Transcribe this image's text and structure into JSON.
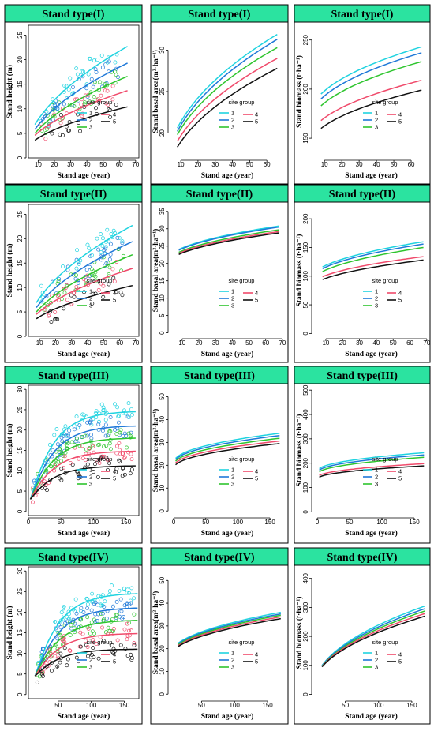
{
  "colors": {
    "1": "#1fd3e0",
    "2": "#1f78d8",
    "3": "#2ec52e",
    "4": "#f04a6b",
    "5": "#111111",
    "header": "#2be3a0"
  },
  "legend": {
    "title": "site group",
    "labels": [
      "1",
      "2",
      "3",
      "4",
      "5"
    ]
  },
  "panels": [
    {
      "title": "Stand type(I)",
      "chart_data": {
        "type": "line",
        "title": "Stand type(I)",
        "xlabel": "Stand age (year)",
        "ylabel": "Stand height (m)",
        "xlim": [
          4,
          72
        ],
        "ylim": [
          0,
          27
        ],
        "xticks": [
          10,
          20,
          30,
          40,
          50,
          60,
          70
        ],
        "yticks": [
          0,
          5,
          10,
          15,
          20,
          25
        ],
        "x_range": [
          8,
          65
        ],
        "scatter": true,
        "series": [
          {
            "name": "1",
            "values": [
              6.8,
              22.7
            ]
          },
          {
            "name": "2",
            "values": [
              5.8,
              19.3
            ]
          },
          {
            "name": "3",
            "values": [
              5.0,
              16.6
            ]
          },
          {
            "name": "4",
            "values": [
              4.6,
              13.7
            ]
          },
          {
            "name": "5",
            "values": [
              3.6,
              10.4
            ]
          }
        ]
      }
    },
    {
      "title": "Stand type(I)",
      "chart_data": {
        "type": "line",
        "title": "Stand type(I)",
        "xlabel": "Stand age (year)",
        "ylabel": "Stand basal area(m²·ha⁻¹)",
        "xlim": [
          4,
          70
        ],
        "ylim": [
          17,
          33
        ],
        "xticks": [
          10,
          20,
          30,
          40,
          50,
          60
        ],
        "yticks": [
          20,
          25,
          30
        ],
        "x_range": [
          8,
          66
        ],
        "scatter": false,
        "series": [
          {
            "name": "1",
            "values": [
              20.6,
              31.9
            ]
          },
          {
            "name": "2",
            "values": [
              20.2,
              31.3
            ]
          },
          {
            "name": "3",
            "values": [
              19.8,
              30.3
            ]
          },
          {
            "name": "4",
            "values": [
              19.0,
              29.0
            ]
          },
          {
            "name": "5",
            "values": [
              18.3,
              27.8
            ]
          }
        ]
      }
    },
    {
      "title": "Stand type(I)",
      "chart_data": {
        "type": "line",
        "title": "Stand type(I)",
        "xlabel": "Stand age (year)",
        "ylabel": "Stand biomass (t·ha⁻¹)",
        "xlim": [
          4,
          70
        ],
        "ylim": [
          130,
          265
        ],
        "xticks": [
          10,
          20,
          30,
          40,
          50,
          60
        ],
        "yticks": [
          150,
          200,
          250
        ],
        "x_range": [
          8,
          66
        ],
        "scatter": false,
        "series": [
          {
            "name": "1",
            "values": [
              195,
              243
            ]
          },
          {
            "name": "2",
            "values": [
              190,
              237
            ]
          },
          {
            "name": "3",
            "values": [
              183,
              228
            ]
          },
          {
            "name": "4",
            "values": [
              168,
              209
            ]
          },
          {
            "name": "5",
            "values": [
              160,
              199
            ]
          }
        ]
      }
    },
    {
      "title": "Stand type(II)",
      "chart_data": {
        "type": "line",
        "title": "Stand type(II)",
        "xlabel": "Stand age (year)",
        "ylabel": "Stand height (m)",
        "xlim": [
          3,
          72
        ],
        "ylim": [
          0,
          27
        ],
        "xticks": [
          10,
          20,
          30,
          40,
          50,
          60,
          70
        ],
        "yticks": [
          0,
          5,
          10,
          15,
          20,
          25
        ],
        "x_range": [
          8,
          68
        ],
        "scatter": true,
        "series": [
          {
            "name": "1",
            "values": [
              6.9,
              22.7
            ]
          },
          {
            "name": "2",
            "values": [
              5.9,
              19.4
            ]
          },
          {
            "name": "3",
            "values": [
              5.0,
              16.7
            ]
          },
          {
            "name": "4",
            "values": [
              4.5,
              13.9
            ]
          },
          {
            "name": "5",
            "values": [
              3.6,
              10.4
            ]
          }
        ]
      }
    },
    {
      "title": "Stand type(II)",
      "chart_data": {
        "type": "line",
        "title": "Stand type(II)",
        "xlabel": "Stand age (year)",
        "ylabel": "Stand basal area(m²·ha⁻¹)",
        "xlim": [
          3,
          71
        ],
        "ylim": [
          -1,
          37
        ],
        "xticks": [
          10,
          20,
          30,
          40,
          50,
          60,
          70
        ],
        "yticks": [
          0,
          5,
          10,
          15,
          20,
          25,
          30,
          35
        ],
        "x_range": [
          8,
          68
        ],
        "scatter": false,
        "series": [
          {
            "name": "1",
            "values": [
              24.0,
              30.8
            ]
          },
          {
            "name": "2",
            "values": [
              23.8,
              30.5
            ]
          },
          {
            "name": "3",
            "values": [
              23.2,
              29.7
            ]
          },
          {
            "name": "4",
            "values": [
              22.9,
              29.2
            ]
          },
          {
            "name": "5",
            "values": [
              22.6,
              28.8
            ]
          }
        ]
      }
    },
    {
      "title": "Stand type(II)",
      "chart_data": {
        "type": "line",
        "title": "Stand type(II)",
        "xlabel": "Stand age (year)",
        "ylabel": "Stand biomass (t·ha⁻¹)",
        "xlim": [
          3,
          71
        ],
        "ylim": [
          -5,
          225
        ],
        "xticks": [
          10,
          20,
          30,
          40,
          50,
          60,
          70
        ],
        "yticks": [
          0,
          50,
          100,
          150,
          200
        ],
        "x_range": [
          8,
          68
        ],
        "scatter": false,
        "series": [
          {
            "name": "1",
            "values": [
              116,
              160
            ]
          },
          {
            "name": "2",
            "values": [
              113,
              156
            ]
          },
          {
            "name": "3",
            "values": [
              108,
              150
            ]
          },
          {
            "name": "4",
            "values": [
              99,
              134
            ]
          },
          {
            "name": "5",
            "values": [
              94,
              128
            ]
          }
        ]
      }
    },
    {
      "title": "Stand type(III)",
      "chart_data": {
        "type": "line",
        "title": "Stand type(III)",
        "xlabel": "Stand age (year)",
        "ylabel": "Stand height (m)",
        "xlim": [
          0,
          170
        ],
        "ylim": [
          -1,
          31
        ],
        "xticks": [
          0,
          50,
          100,
          150
        ],
        "yticks": [
          0,
          5,
          10,
          15,
          20,
          25,
          30
        ],
        "x_range": [
          3,
          165
        ],
        "scatter": true,
        "series": [
          {
            "name": "1",
            "values": [
              3.0,
              24.5
            ]
          },
          {
            "name": "2",
            "values": [
              3.0,
              21.0
            ]
          },
          {
            "name": "3",
            "values": [
              3.0,
              18.0
            ]
          },
          {
            "name": "4",
            "values": [
              3.0,
              14.8
            ]
          },
          {
            "name": "5",
            "values": [
              3.0,
              11.2
            ]
          }
        ]
      }
    },
    {
      "title": "Stand type(III)",
      "chart_data": {
        "type": "line",
        "title": "Stand type(III)",
        "xlabel": "Stand age (year)",
        "ylabel": "Stand basal area(m²·ha⁻¹)",
        "xlim": [
          -5,
          172
        ],
        "ylim": [
          -2,
          55
        ],
        "xticks": [
          0,
          50,
          100,
          150
        ],
        "yticks": [
          0,
          10,
          20,
          30,
          40,
          50
        ],
        "x_range": [
          3,
          165
        ],
        "scatter": false,
        "series": [
          {
            "name": "1",
            "values": [
              23.0,
              34.0
            ]
          },
          {
            "name": "2",
            "values": [
              22.5,
              33.0
            ]
          },
          {
            "name": "3",
            "values": [
              21.8,
              31.8
            ]
          },
          {
            "name": "4",
            "values": [
              21.0,
              30.6
            ]
          },
          {
            "name": "5",
            "values": [
              20.2,
              29.5
            ]
          }
        ]
      }
    },
    {
      "title": "Stand type(III)",
      "chart_data": {
        "type": "line",
        "title": "Stand type(III)",
        "xlabel": "Stand age (year)",
        "ylabel": "Stand biomass (t·ha⁻¹)",
        "xlim": [
          -5,
          172
        ],
        "ylim": [
          -15,
          520
        ],
        "xticks": [
          0,
          50,
          100,
          150
        ],
        "yticks": [
          0,
          100,
          200,
          300,
          400,
          500
        ],
        "x_range": [
          3,
          165
        ],
        "scatter": false,
        "series": [
          {
            "name": "1",
            "values": [
              178,
              243
            ]
          },
          {
            "name": "2",
            "values": [
              172,
              234
            ]
          },
          {
            "name": "3",
            "values": [
              165,
              224
            ]
          },
          {
            "name": "4",
            "values": [
              150,
              198
            ]
          },
          {
            "name": "5",
            "values": [
              143,
              189
            ]
          }
        ]
      }
    },
    {
      "title": "Stand type(IV)",
      "chart_data": {
        "type": "line",
        "title": "Stand type(IV)",
        "xlabel": "Stand age (year)",
        "ylabel": "Stand height (m)",
        "xlim": [
          5,
          172
        ],
        "ylim": [
          -1,
          31
        ],
        "xticks": [
          50,
          100,
          150
        ],
        "yticks": [
          0,
          5,
          10,
          15,
          20,
          25,
          30
        ],
        "x_range": [
          15,
          170
        ],
        "scatter": true,
        "series": [
          {
            "name": "1",
            "values": [
              4.5,
              24.5
            ]
          },
          {
            "name": "2",
            "values": [
              4.5,
              21.0
            ]
          },
          {
            "name": "3",
            "values": [
              4.5,
              18.0
            ]
          },
          {
            "name": "4",
            "values": [
              4.5,
              14.8
            ]
          },
          {
            "name": "5",
            "values": [
              4.5,
              11.0
            ]
          }
        ]
      }
    },
    {
      "title": "Stand type(IV)",
      "chart_data": {
        "type": "line",
        "title": "Stand type(IV)",
        "xlabel": "Stand age (year)",
        "ylabel": "Stand basal area(m²·ha⁻¹)",
        "xlim": [
          3,
          175
        ],
        "ylim": [
          -2,
          56
        ],
        "xticks": [
          50,
          100,
          150
        ],
        "yticks": [
          0,
          10,
          20,
          30,
          40,
          50
        ],
        "x_range": [
          15,
          170
        ],
        "scatter": false,
        "series": [
          {
            "name": "1",
            "values": [
              22.5,
              36.0
            ]
          },
          {
            "name": "2",
            "values": [
              22.2,
              35.3
            ]
          },
          {
            "name": "3",
            "values": [
              21.8,
              34.7
            ]
          },
          {
            "name": "4",
            "values": [
              21.4,
              34.0
            ]
          },
          {
            "name": "5",
            "values": [
              21.0,
              33.2
            ]
          }
        ]
      }
    },
    {
      "title": "Stand type(IV)",
      "chart_data": {
        "type": "line",
        "title": "Stand type(IV)",
        "xlabel": "Stand age (year)",
        "ylabel": "Stand biomass (t·ha⁻¹)",
        "xlim": [
          3,
          175
        ],
        "ylim": [
          -15,
          440
        ],
        "xticks": [
          50,
          100,
          150
        ],
        "yticks": [
          0,
          100,
          200,
          300,
          400
        ],
        "x_range": [
          15,
          170
        ],
        "scatter": false,
        "series": [
          {
            "name": "1",
            "values": [
              100,
              305
            ]
          },
          {
            "name": "2",
            "values": [
              99,
              296
            ]
          },
          {
            "name": "3",
            "values": [
              97,
              288
            ]
          },
          {
            "name": "4",
            "values": [
              96,
              279
            ]
          },
          {
            "name": "5",
            "values": [
              95,
              270
            ]
          }
        ]
      }
    }
  ]
}
